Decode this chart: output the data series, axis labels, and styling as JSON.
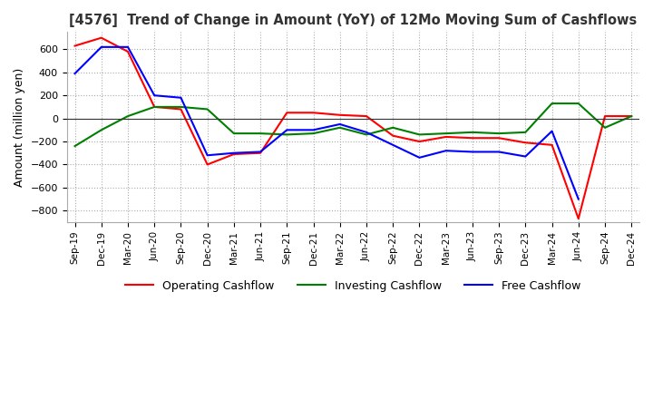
{
  "title": "[4576]  Trend of Change in Amount (YoY) of 12Mo Moving Sum of Cashflows",
  "ylabel": "Amount (million yen)",
  "ylim": [
    -900,
    750
  ],
  "yticks": [
    -800,
    -600,
    -400,
    -200,
    0,
    200,
    400,
    600
  ],
  "x_labels": [
    "Sep-19",
    "Dec-19",
    "Mar-20",
    "Jun-20",
    "Sep-20",
    "Dec-20",
    "Mar-21",
    "Jun-21",
    "Sep-21",
    "Dec-21",
    "Mar-22",
    "Jun-22",
    "Sep-22",
    "Dec-22",
    "Mar-23",
    "Jun-23",
    "Sep-23",
    "Dec-23",
    "Mar-24",
    "Jun-24",
    "Sep-24",
    "Dec-24"
  ],
  "operating": [
    630,
    700,
    580,
    100,
    80,
    -400,
    -310,
    -300,
    50,
    50,
    30,
    20,
    -150,
    -200,
    -160,
    -170,
    -170,
    -210,
    -230,
    -870,
    20,
    20
  ],
  "investing": [
    -240,
    -100,
    20,
    100,
    100,
    80,
    -130,
    -130,
    -140,
    -130,
    -80,
    -140,
    -80,
    -140,
    -130,
    -120,
    -130,
    -120,
    130,
    130,
    -80,
    20
  ],
  "free": [
    390,
    620,
    620,
    200,
    180,
    -320,
    -300,
    -290,
    -100,
    -100,
    -50,
    -120,
    -230,
    -340,
    -280,
    -290,
    -290,
    -330,
    -110,
    -700,
    null,
    null
  ],
  "colors": {
    "operating": "#ff0000",
    "investing": "#008000",
    "free": "#0000ff"
  },
  "legend_labels": [
    "Operating Cashflow",
    "Investing Cashflow",
    "Free Cashflow"
  ],
  "background_color": "#ffffff",
  "grid_color": "#aaaaaa"
}
